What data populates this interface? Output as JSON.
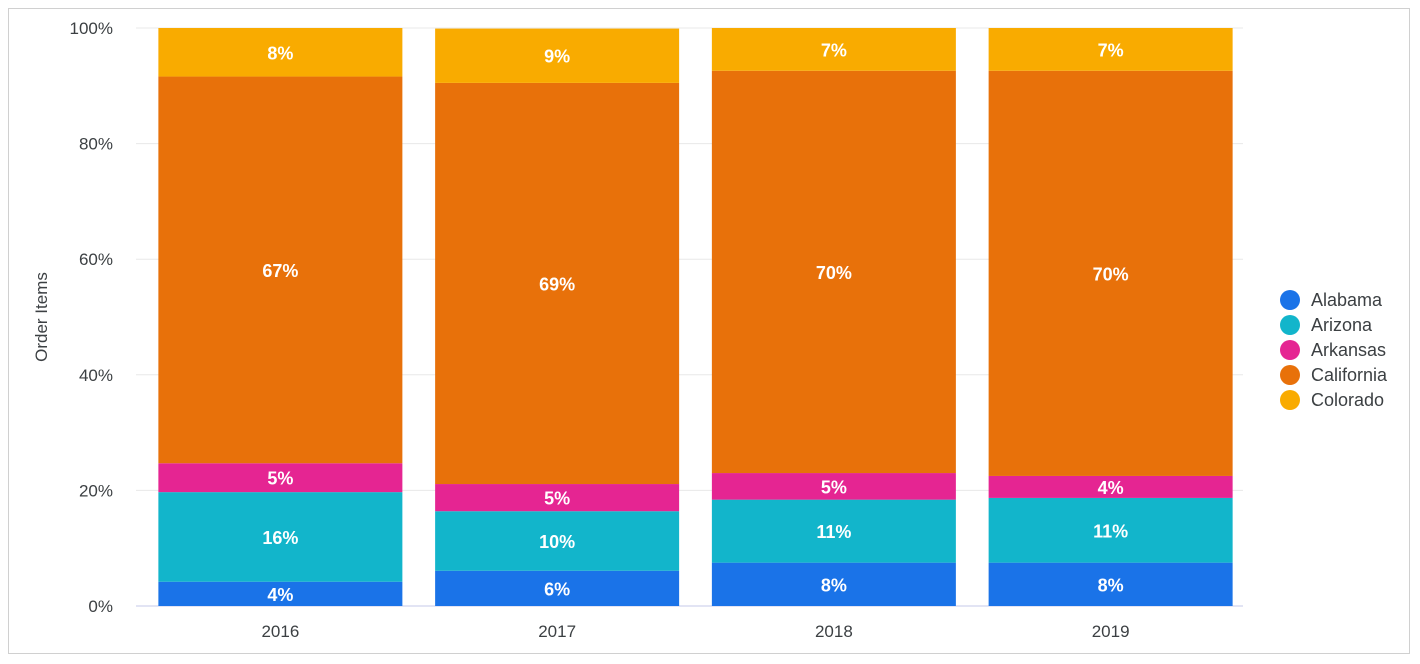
{
  "chart_data": {
    "type": "bar",
    "stacked": "percent",
    "title": "",
    "xlabel": "",
    "ylabel": "Order Items",
    "ylim": [
      0,
      100
    ],
    "yticks": [
      "0%",
      "20%",
      "40%",
      "60%",
      "80%",
      "100%"
    ],
    "categories": [
      "2016",
      "2017",
      "2018",
      "2019"
    ],
    "grid": true,
    "legend": "right",
    "series": [
      {
        "name": "Alabama",
        "color": "#1a73e8",
        "values": [
          4.2,
          6.1,
          7.5,
          7.5
        ]
      },
      {
        "name": "Arizona",
        "color": "#12b5cb",
        "values": [
          15.5,
          10.3,
          10.9,
          11.2
        ]
      },
      {
        "name": "Arkansas",
        "color": "#e52592",
        "values": [
          5.0,
          4.7,
          4.6,
          3.8
        ]
      },
      {
        "name": "California",
        "color": "#e8710a",
        "values": [
          66.9,
          69.4,
          69.6,
          70.1
        ]
      },
      {
        "name": "Colorado",
        "color": "#f9ab00",
        "values": [
          8.4,
          9.4,
          7.4,
          7.4
        ]
      }
    ]
  }
}
